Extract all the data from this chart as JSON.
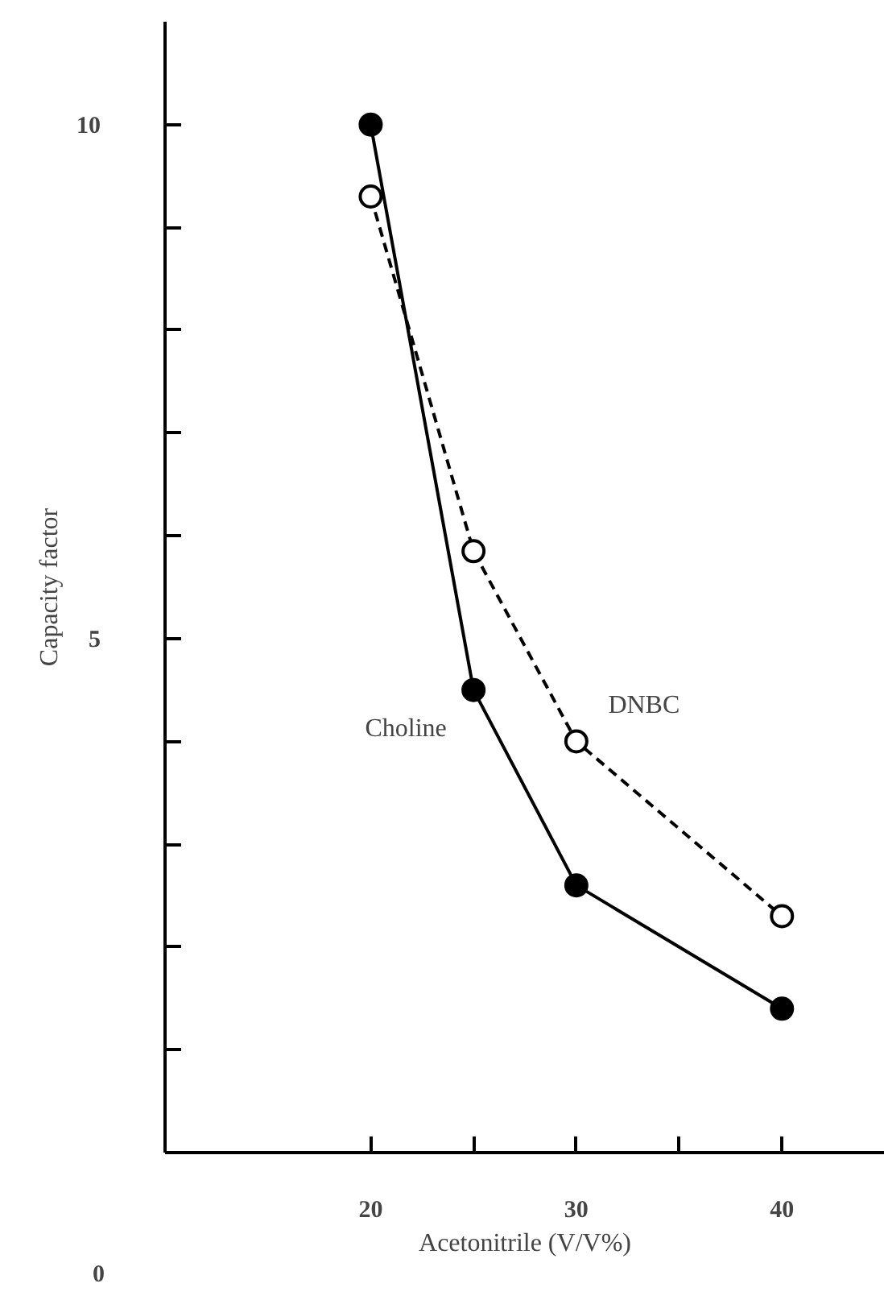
{
  "chart_data": {
    "type": "line",
    "xlabel": "Acetonitrile (V/V%)",
    "ylabel": "Capacity factor",
    "x": [
      20,
      25,
      30,
      40
    ],
    "series": [
      {
        "name": "Choline",
        "color": "#000000",
        "values": [
          10.0,
          4.5,
          2.6,
          1.4
        ],
        "marker": "circle",
        "line_style": "solid"
      },
      {
        "name": "DNBC",
        "color": "#000000",
        "values": [
          9.3,
          5.85,
          4.0,
          2.3
        ],
        "marker": "circle",
        "line_style": "dashed"
      }
    ],
    "xlim": [
      10,
      45
    ],
    "xticks": [
      20,
      {
        "value": 25,
        "label": null
      },
      30,
      {
        "value": 35,
        "label": null
      },
      40
    ],
    "annotations": [
      "0"
    ],
    "ylim": [
      0,
      11
    ],
    "yticks": [
      {
        "value": 1,
        "label": null
      },
      {
        "value": 2,
        "label": null
      },
      {
        "value": 3,
        "label": null
      },
      {
        "value": 4,
        "label": null
      },
      5,
      {
        "value": 6,
        "label": null
      },
      {
        "value": 7,
        "label": null
      },
      {
        "value": 8,
        "label": null
      },
      {
        "value": 9,
        "label": null
      },
      10
    ],
    "grid": false,
    "legend": false
  }
}
